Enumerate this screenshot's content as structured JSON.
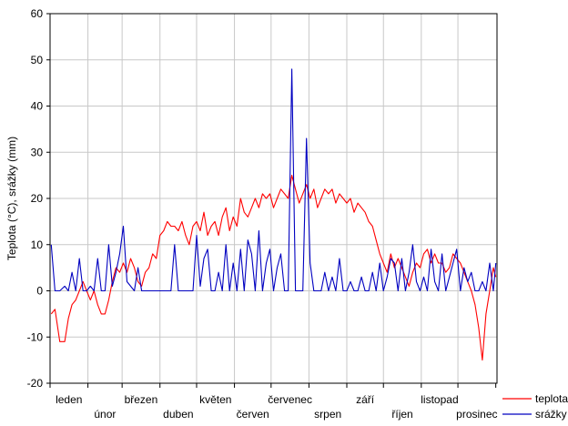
{
  "chart_data": {
    "type": "line",
    "title": "",
    "xlabel": "",
    "ylabel": "Teplota (°C), srážky (mm)",
    "ylim": [
      -20,
      60
    ],
    "yticks": [
      -20,
      -10,
      0,
      10,
      20,
      30,
      40,
      50,
      60
    ],
    "grid": true,
    "legend_position": "bottom-right",
    "month_labels": [
      "leden",
      "únor",
      "březen",
      "duben",
      "květen",
      "červen",
      "červenec",
      "srpen",
      "září",
      "říjen",
      "listopad",
      "prosinec"
    ],
    "series": [
      {
        "name": "teplota",
        "color": "#ff0000",
        "points": [
          [
            1,
            -5
          ],
          [
            4,
            -4
          ],
          [
            8,
            -11
          ],
          [
            12,
            -11
          ],
          [
            15,
            -6
          ],
          [
            18,
            -3
          ],
          [
            21,
            -2
          ],
          [
            24,
            0
          ],
          [
            27,
            2
          ],
          [
            30,
            0
          ],
          [
            33,
            -2
          ],
          [
            36,
            0
          ],
          [
            39,
            -3
          ],
          [
            42,
            -5
          ],
          [
            45,
            -5
          ],
          [
            48,
            -2
          ],
          [
            51,
            2
          ],
          [
            54,
            5
          ],
          [
            57,
            4
          ],
          [
            60,
            6
          ],
          [
            63,
            4
          ],
          [
            66,
            7
          ],
          [
            69,
            5
          ],
          [
            72,
            2
          ],
          [
            75,
            1
          ],
          [
            78,
            4
          ],
          [
            81,
            5
          ],
          [
            84,
            8
          ],
          [
            87,
            7
          ],
          [
            90,
            12
          ],
          [
            93,
            13
          ],
          [
            96,
            15
          ],
          [
            99,
            14
          ],
          [
            102,
            14
          ],
          [
            105,
            13
          ],
          [
            108,
            15
          ],
          [
            111,
            12
          ],
          [
            114,
            10
          ],
          [
            117,
            14
          ],
          [
            120,
            15
          ],
          [
            123,
            13
          ],
          [
            126,
            17
          ],
          [
            129,
            12
          ],
          [
            132,
            14
          ],
          [
            135,
            15
          ],
          [
            138,
            12
          ],
          [
            141,
            16
          ],
          [
            144,
            18
          ],
          [
            147,
            13
          ],
          [
            150,
            16
          ],
          [
            153,
            14
          ],
          [
            156,
            20
          ],
          [
            159,
            17
          ],
          [
            162,
            16
          ],
          [
            165,
            18
          ],
          [
            168,
            20
          ],
          [
            171,
            18
          ],
          [
            174,
            21
          ],
          [
            177,
            20
          ],
          [
            180,
            21
          ],
          [
            183,
            18
          ],
          [
            186,
            20
          ],
          [
            189,
            22
          ],
          [
            192,
            21
          ],
          [
            195,
            20
          ],
          [
            198,
            25
          ],
          [
            201,
            22
          ],
          [
            204,
            19
          ],
          [
            207,
            21
          ],
          [
            210,
            23
          ],
          [
            213,
            20
          ],
          [
            216,
            22
          ],
          [
            219,
            18
          ],
          [
            222,
            20
          ],
          [
            225,
            22
          ],
          [
            228,
            21
          ],
          [
            231,
            22
          ],
          [
            234,
            19
          ],
          [
            237,
            21
          ],
          [
            240,
            20
          ],
          [
            243,
            19
          ],
          [
            246,
            20
          ],
          [
            249,
            17
          ],
          [
            252,
            19
          ],
          [
            255,
            18
          ],
          [
            258,
            17
          ],
          [
            261,
            15
          ],
          [
            264,
            14
          ],
          [
            267,
            11
          ],
          [
            270,
            8
          ],
          [
            273,
            6
          ],
          [
            276,
            4
          ],
          [
            279,
            8
          ],
          [
            282,
            5
          ],
          [
            285,
            7
          ],
          [
            288,
            5
          ],
          [
            291,
            3
          ],
          [
            294,
            1
          ],
          [
            297,
            4
          ],
          [
            300,
            6
          ],
          [
            303,
            5
          ],
          [
            306,
            8
          ],
          [
            309,
            9
          ],
          [
            312,
            6
          ],
          [
            315,
            8
          ],
          [
            318,
            6
          ],
          [
            321,
            6
          ],
          [
            324,
            4
          ],
          [
            327,
            5
          ],
          [
            330,
            8
          ],
          [
            333,
            7
          ],
          [
            336,
            6
          ],
          [
            339,
            4
          ],
          [
            342,
            2
          ],
          [
            345,
            0
          ],
          [
            348,
            -3
          ],
          [
            351,
            -8
          ],
          [
            354,
            -15
          ],
          [
            357,
            -5
          ],
          [
            360,
            0
          ],
          [
            363,
            5
          ],
          [
            365,
            3
          ]
        ]
      },
      {
        "name": "srážky",
        "color": "#0000c0",
        "points": [
          [
            1,
            10
          ],
          [
            4,
            0
          ],
          [
            8,
            0
          ],
          [
            12,
            1
          ],
          [
            15,
            0
          ],
          [
            18,
            4
          ],
          [
            21,
            0
          ],
          [
            24,
            7
          ],
          [
            27,
            0
          ],
          [
            30,
            0
          ],
          [
            33,
            1
          ],
          [
            36,
            0
          ],
          [
            39,
            7
          ],
          [
            42,
            0
          ],
          [
            45,
            0
          ],
          [
            48,
            10
          ],
          [
            51,
            1
          ],
          [
            54,
            4
          ],
          [
            57,
            8
          ],
          [
            60,
            14
          ],
          [
            63,
            2
          ],
          [
            66,
            1
          ],
          [
            69,
            0
          ],
          [
            72,
            5
          ],
          [
            75,
            0
          ],
          [
            78,
            0
          ],
          [
            81,
            0
          ],
          [
            84,
            0
          ],
          [
            87,
            0
          ],
          [
            90,
            0
          ],
          [
            93,
            0
          ],
          [
            96,
            0
          ],
          [
            99,
            0
          ],
          [
            102,
            10
          ],
          [
            105,
            0
          ],
          [
            108,
            0
          ],
          [
            111,
            0
          ],
          [
            114,
            0
          ],
          [
            117,
            0
          ],
          [
            120,
            12
          ],
          [
            123,
            1
          ],
          [
            126,
            7
          ],
          [
            129,
            9
          ],
          [
            132,
            0
          ],
          [
            135,
            0
          ],
          [
            138,
            4
          ],
          [
            141,
            0
          ],
          [
            144,
            10
          ],
          [
            147,
            0
          ],
          [
            150,
            6
          ],
          [
            153,
            0
          ],
          [
            156,
            9
          ],
          [
            159,
            0
          ],
          [
            162,
            11
          ],
          [
            165,
            8
          ],
          [
            168,
            0
          ],
          [
            171,
            13
          ],
          [
            174,
            0
          ],
          [
            177,
            6
          ],
          [
            180,
            9
          ],
          [
            183,
            0
          ],
          [
            186,
            5
          ],
          [
            189,
            8
          ],
          [
            192,
            0
          ],
          [
            195,
            0
          ],
          [
            198,
            48
          ],
          [
            201,
            0
          ],
          [
            204,
            0
          ],
          [
            207,
            0
          ],
          [
            210,
            33
          ],
          [
            213,
            6
          ],
          [
            216,
            0
          ],
          [
            219,
            0
          ],
          [
            222,
            0
          ],
          [
            225,
            4
          ],
          [
            228,
            0
          ],
          [
            231,
            3
          ],
          [
            234,
            0
          ],
          [
            237,
            7
          ],
          [
            240,
            0
          ],
          [
            243,
            0
          ],
          [
            246,
            2
          ],
          [
            249,
            0
          ],
          [
            252,
            0
          ],
          [
            255,
            3
          ],
          [
            258,
            0
          ],
          [
            261,
            0
          ],
          [
            264,
            4
          ],
          [
            267,
            0
          ],
          [
            270,
            6
          ],
          [
            273,
            0
          ],
          [
            276,
            3
          ],
          [
            279,
            7
          ],
          [
            282,
            6
          ],
          [
            285,
            0
          ],
          [
            288,
            7
          ],
          [
            291,
            0
          ],
          [
            294,
            4
          ],
          [
            297,
            10
          ],
          [
            300,
            2
          ],
          [
            303,
            0
          ],
          [
            306,
            3
          ],
          [
            309,
            0
          ],
          [
            312,
            9
          ],
          [
            315,
            2
          ],
          [
            318,
            0
          ],
          [
            321,
            8
          ],
          [
            324,
            0
          ],
          [
            327,
            3
          ],
          [
            330,
            6
          ],
          [
            333,
            9
          ],
          [
            336,
            0
          ],
          [
            339,
            5
          ],
          [
            342,
            2
          ],
          [
            345,
            4
          ],
          [
            348,
            0
          ],
          [
            351,
            0
          ],
          [
            354,
            2
          ],
          [
            357,
            0
          ],
          [
            360,
            6
          ],
          [
            363,
            0
          ],
          [
            365,
            6
          ]
        ]
      }
    ]
  }
}
